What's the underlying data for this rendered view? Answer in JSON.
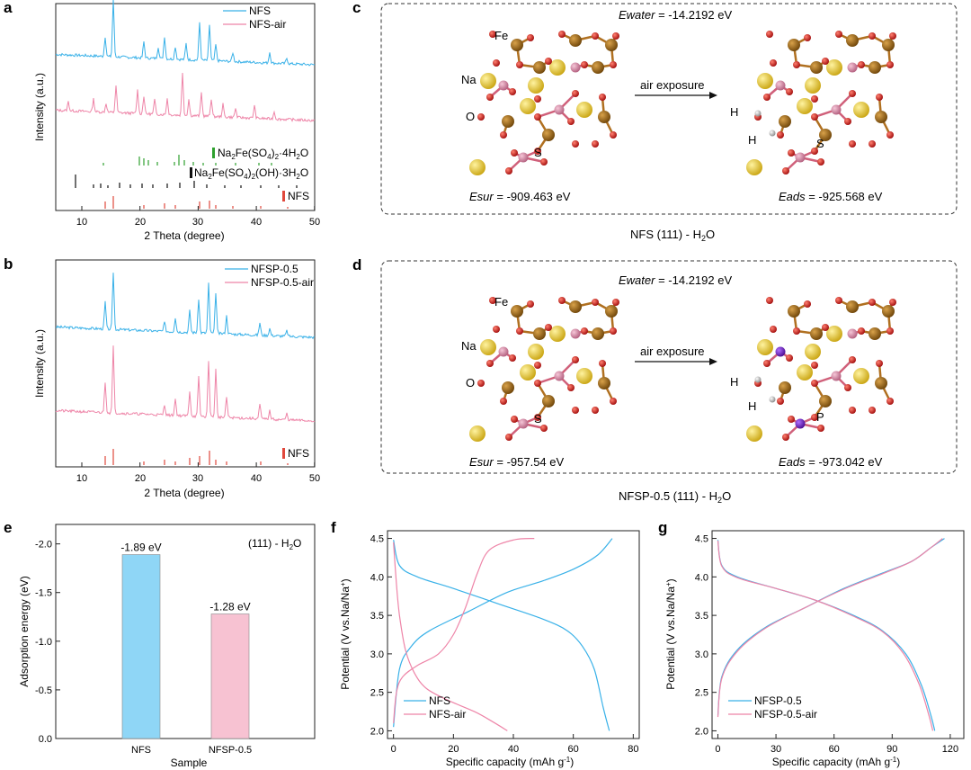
{
  "panels": {
    "a": {
      "letter": "a",
      "xlabel": "2 Theta (degree)",
      "ylabel": "Intensity (a.u.)",
      "xticks": [
        "10",
        "20",
        "30",
        "40",
        "50"
      ],
      "legend": [
        "NFS",
        "NFS-air"
      ],
      "refs": [
        "Na2Fe(SO4)2·4H2O",
        "Na2Fe(SO4)2(OH)·3H2O",
        "NFS"
      ]
    },
    "b": {
      "letter": "b",
      "xlabel": "2 Theta (degree)",
      "ylabel": "Intensity (a.u.)",
      "xticks": [
        "10",
        "20",
        "30",
        "40",
        "50"
      ],
      "legend": [
        "NFSP-0.5",
        "NFSP-0.5-air"
      ],
      "refs": [
        "NFS"
      ]
    },
    "c": {
      "letter": "c",
      "ewater": "= -14.2192 eV",
      "esur": "= -909.463 eV",
      "eads": "= -925.568 eV",
      "arrow": "air exposure",
      "caption": "NFS (111) - H2O",
      "atoms": {
        "fe": "Fe",
        "na": "Na",
        "o": "O",
        "s": "S",
        "h1": "H",
        "h2": "H"
      }
    },
    "d": {
      "letter": "d",
      "ewater": "= -14.2192 eV",
      "esur": "= -957.54 eV",
      "eads": "= -973.042 eV",
      "arrow": "air exposure",
      "caption": "NFSP-0.5 (111) - H2O",
      "atoms": {
        "fe": "Fe",
        "na": "Na",
        "o": "O",
        "s": "S",
        "h1": "H",
        "h2": "H",
        "p": "P"
      }
    },
    "e": {
      "letter": "e",
      "ylabel": "Adsorption energy (eV)",
      "xlabel": "Sample",
      "note": "(111) - H2O",
      "yticks": [
        "-2.0",
        "-1.5",
        "-1.0",
        "-0.5",
        "0.0"
      ]
    },
    "f": {
      "letter": "f",
      "ylabel": "Potential (V vs.Na/Na+)",
      "xlabel": "Specific capacity (mAh g-1)",
      "xticks": [
        "0",
        "20",
        "40",
        "60",
        "80"
      ],
      "yticks": [
        "4.5",
        "4.0",
        "3.5",
        "3.0",
        "2.5",
        "2.0"
      ]
    },
    "g": {
      "letter": "g",
      "ylabel": "Potential (V vs.Na/Na+)",
      "xlabel": "Specific capacity (mAh g-1)",
      "xticks": [
        "0",
        "30",
        "60",
        "90",
        "120"
      ],
      "yticks": [
        "4.5",
        "4.0",
        "3.5",
        "3.0",
        "2.5",
        "2.0"
      ]
    }
  },
  "energy_symbols": {
    "water": "Ewater",
    "sur": "Esur",
    "ads": "Eads"
  },
  "colors": {
    "blue": "#39b1e8",
    "pink": "#ee85a8",
    "red": "#e0483c",
    "green": "#2ea02e",
    "black": "#111111",
    "bar_blue": "#8fd6f6",
    "bar_pink": "#f7c2d2",
    "fe": "#9a6414",
    "na": "#e8c83a",
    "o": "#d42020",
    "s": "#d98aa6",
    "p": "#6a18b8",
    "h": "#bbbbbb"
  },
  "chart_data": [
    {
      "type": "bar",
      "title": "",
      "xlabel": "Sample",
      "ylabel": "Adsorption energy (eV)",
      "ylim": [
        0,
        -2.2
      ],
      "categories": [
        "NFS",
        "NFSP-0.5"
      ],
      "values": [
        -1.89,
        -1.28
      ],
      "data_labels": [
        "-1.89 eV",
        "-1.28 eV"
      ]
    },
    {
      "type": "line",
      "title": "",
      "xlabel": "Specific capacity (mAh g-1)",
      "ylabel": "Potential (V vs.Na/Na+)",
      "xlim": [
        -2,
        82
      ],
      "ylim": [
        1.9,
        4.6
      ],
      "series": [
        {
          "name": "NFS",
          "charge": [
            [
              0,
              2.05
            ],
            [
              2,
              2.8
            ],
            [
              6,
              3.1
            ],
            [
              12,
              3.3
            ],
            [
              25,
              3.55
            ],
            [
              38,
              3.8
            ],
            [
              50,
              3.95
            ],
            [
              60,
              4.1
            ],
            [
              68,
              4.28
            ],
            [
              73,
              4.5
            ]
          ],
          "discharge": [
            [
              0,
              4.48
            ],
            [
              2,
              4.15
            ],
            [
              8,
              4.0
            ],
            [
              20,
              3.85
            ],
            [
              35,
              3.65
            ],
            [
              50,
              3.45
            ],
            [
              58,
              3.3
            ],
            [
              63,
              3.1
            ],
            [
              67,
              2.8
            ],
            [
              70,
              2.3
            ],
            [
              72,
              2.0
            ]
          ]
        },
        {
          "name": "NFS-air",
          "charge": [
            [
              0,
              2.1
            ],
            [
              1,
              2.5
            ],
            [
              3,
              2.7
            ],
            [
              8,
              2.85
            ],
            [
              15,
              3.0
            ],
            [
              20,
              3.25
            ],
            [
              24,
              3.6
            ],
            [
              28,
              4.05
            ],
            [
              32,
              4.35
            ],
            [
              40,
              4.48
            ],
            [
              47,
              4.5
            ]
          ],
          "discharge": [
            [
              0,
              4.45
            ],
            [
              1,
              3.9
            ],
            [
              2,
              3.5
            ],
            [
              4,
              3.05
            ],
            [
              7,
              2.75
            ],
            [
              11,
              2.55
            ],
            [
              18,
              2.4
            ],
            [
              27,
              2.25
            ],
            [
              33,
              2.12
            ],
            [
              38,
              2.0
            ]
          ]
        }
      ]
    },
    {
      "type": "line",
      "title": "",
      "xlabel": "Specific capacity (mAh g-1)",
      "ylabel": "Potential (V vs.Na/Na+)",
      "xlim": [
        -3,
        127
      ],
      "ylim": [
        1.9,
        4.6
      ],
      "series": [
        {
          "name": "NFSP-0.5",
          "charge": [
            [
              0,
              2.2
            ],
            [
              2,
              2.7
            ],
            [
              10,
              3.05
            ],
            [
              25,
              3.35
            ],
            [
              45,
              3.6
            ],
            [
              65,
              3.85
            ],
            [
              85,
              4.05
            ],
            [
              100,
              4.2
            ],
            [
              110,
              4.38
            ],
            [
              117,
              4.5
            ]
          ],
          "discharge": [
            [
              0,
              4.48
            ],
            [
              2,
              4.15
            ],
            [
              10,
              4.0
            ],
            [
              30,
              3.85
            ],
            [
              50,
              3.7
            ],
            [
              70,
              3.5
            ],
            [
              85,
              3.3
            ],
            [
              97,
              3.0
            ],
            [
              105,
              2.6
            ],
            [
              110,
              2.2
            ],
            [
              112,
              2.0
            ]
          ]
        },
        {
          "name": "NFSP-0.5-air",
          "charge": [
            [
              0,
              2.18
            ],
            [
              2,
              2.68
            ],
            [
              10,
              3.03
            ],
            [
              25,
              3.34
            ],
            [
              45,
              3.6
            ],
            [
              65,
              3.84
            ],
            [
              85,
              4.04
            ],
            [
              100,
              4.2
            ],
            [
              110,
              4.38
            ],
            [
              116,
              4.5
            ]
          ],
          "discharge": [
            [
              0,
              4.47
            ],
            [
              2,
              4.14
            ],
            [
              10,
              3.99
            ],
            [
              30,
              3.85
            ],
            [
              50,
              3.7
            ],
            [
              70,
              3.49
            ],
            [
              85,
              3.29
            ],
            [
              96,
              3.0
            ],
            [
              104,
              2.6
            ],
            [
              109,
              2.2
            ],
            [
              111,
              2.0
            ]
          ]
        }
      ]
    }
  ]
}
